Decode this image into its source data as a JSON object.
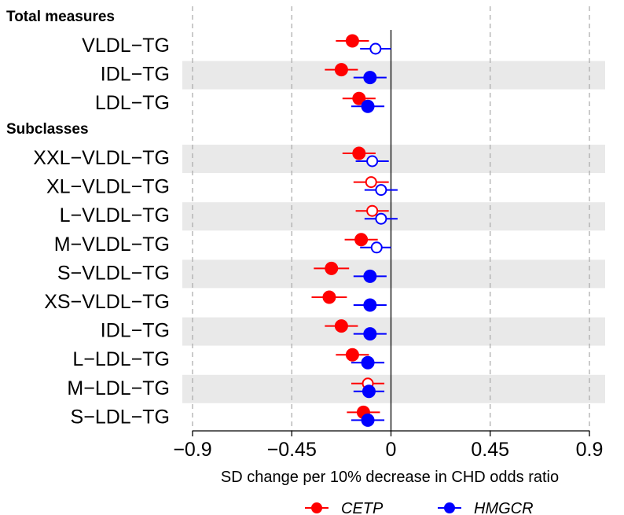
{
  "chart_data": {
    "type": "scatter",
    "subtype": "forest",
    "xlabel": "SD change per 10% decrease in CHD odds ratio",
    "xlim": [
      -0.9,
      0.9
    ],
    "xticks": [
      -0.9,
      -0.45,
      0,
      0.45,
      0.9
    ],
    "xtick_labels": [
      "−0.9",
      "−0.45",
      "0",
      "0.45",
      "0.9"
    ],
    "grid": "dashed vertical at non-zero ticks",
    "legend_position": "bottom",
    "series": [
      {
        "name": "CETP",
        "color": "#ff0000"
      },
      {
        "name": "HMGCR",
        "color": "#0000ff"
      }
    ],
    "sections": [
      {
        "title": "Total measures",
        "rows": [
          {
            "label": "VLDL−TG",
            "shaded": false,
            "cetp": {
              "est": -0.175,
              "lo": -0.25,
              "hi": -0.1,
              "filled": true
            },
            "hmgcr": {
              "est": -0.07,
              "lo": -0.14,
              "hi": 0.0,
              "filled": false
            }
          },
          {
            "label": "IDL−TG",
            "shaded": true,
            "cetp": {
              "est": -0.225,
              "lo": -0.3,
              "hi": -0.15,
              "filled": true
            },
            "hmgcr": {
              "est": -0.095,
              "lo": -0.17,
              "hi": -0.02,
              "filled": true
            }
          },
          {
            "label": "LDL−TG",
            "shaded": false,
            "cetp": {
              "est": -0.145,
              "lo": -0.22,
              "hi": -0.07,
              "filled": true
            },
            "hmgcr": {
              "est": -0.105,
              "lo": -0.18,
              "hi": -0.03,
              "filled": true
            }
          }
        ]
      },
      {
        "title": "Subclasses",
        "rows": [
          {
            "label": "XXL−VLDL−TG",
            "shaded": true,
            "cetp": {
              "est": -0.145,
              "lo": -0.22,
              "hi": -0.07,
              "filled": true
            },
            "hmgcr": {
              "est": -0.085,
              "lo": -0.16,
              "hi": -0.01,
              "filled": false
            }
          },
          {
            "label": "XL−VLDL−TG",
            "shaded": false,
            "cetp": {
              "est": -0.09,
              "lo": -0.17,
              "hi": -0.01,
              "filled": false
            },
            "hmgcr": {
              "est": -0.045,
              "lo": -0.12,
              "hi": 0.03,
              "filled": false
            }
          },
          {
            "label": "L−VLDL−TG",
            "shaded": true,
            "cetp": {
              "est": -0.085,
              "lo": -0.16,
              "hi": -0.01,
              "filled": false
            },
            "hmgcr": {
              "est": -0.045,
              "lo": -0.12,
              "hi": 0.03,
              "filled": false
            }
          },
          {
            "label": "M−VLDL−TG",
            "shaded": false,
            "cetp": {
              "est": -0.135,
              "lo": -0.21,
              "hi": -0.06,
              "filled": true
            },
            "hmgcr": {
              "est": -0.065,
              "lo": -0.14,
              "hi": 0.0,
              "filled": false
            }
          },
          {
            "label": "S−VLDL−TG",
            "shaded": true,
            "cetp": {
              "est": -0.27,
              "lo": -0.35,
              "hi": -0.19,
              "filled": true
            },
            "hmgcr": {
              "est": -0.095,
              "lo": -0.17,
              "hi": -0.02,
              "filled": true
            }
          },
          {
            "label": "XS−VLDL−TG",
            "shaded": false,
            "cetp": {
              "est": -0.28,
              "lo": -0.36,
              "hi": -0.2,
              "filled": true
            },
            "hmgcr": {
              "est": -0.095,
              "lo": -0.17,
              "hi": -0.02,
              "filled": true
            }
          },
          {
            "label": "IDL−TG",
            "shaded": true,
            "cetp": {
              "est": -0.225,
              "lo": -0.3,
              "hi": -0.15,
              "filled": true
            },
            "hmgcr": {
              "est": -0.095,
              "lo": -0.17,
              "hi": -0.02,
              "filled": true
            }
          },
          {
            "label": "L−LDL−TG",
            "shaded": false,
            "cetp": {
              "est": -0.175,
              "lo": -0.25,
              "hi": -0.1,
              "filled": true
            },
            "hmgcr": {
              "est": -0.105,
              "lo": -0.18,
              "hi": -0.03,
              "filled": true
            }
          },
          {
            "label": "M−LDL−TG",
            "shaded": true,
            "cetp": {
              "est": -0.105,
              "lo": -0.18,
              "hi": -0.03,
              "filled": false
            },
            "hmgcr": {
              "est": -0.1,
              "lo": -0.17,
              "hi": -0.03,
              "filled": true
            }
          },
          {
            "label": "S−LDL−TG",
            "shaded": false,
            "cetp": {
              "est": -0.125,
              "lo": -0.2,
              "hi": -0.05,
              "filled": true
            },
            "hmgcr": {
              "est": -0.105,
              "lo": -0.18,
              "hi": -0.03,
              "filled": true
            }
          }
        ]
      }
    ]
  }
}
